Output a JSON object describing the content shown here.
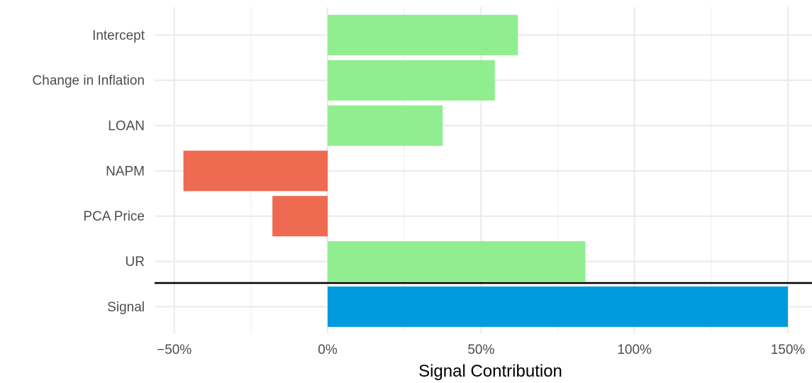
{
  "chart_data": {
    "type": "bar",
    "orientation": "horizontal",
    "xlabel": "Signal Contribution",
    "ylabel": "",
    "xlim": [
      -55,
      152
    ],
    "x_ticks": [
      -50,
      0,
      50,
      100,
      150
    ],
    "x_tick_labels": [
      "−50%",
      "0%",
      "50%",
      "100%",
      "150%"
    ],
    "categories": [
      "Intercept",
      "Change in Inflation",
      "LOAN",
      "NAPM",
      "PCA Price",
      "UR",
      "Signal"
    ],
    "values": [
      62,
      54.5,
      37.5,
      -47,
      -18,
      84,
      150
    ],
    "bar_colors": [
      "#90EE90",
      "#90EE90",
      "#90EE90",
      "#EE6A50",
      "#EE6A50",
      "#90EE90",
      "#009ADE"
    ],
    "separator_before": "Signal",
    "grid": true,
    "legend": "none"
  }
}
